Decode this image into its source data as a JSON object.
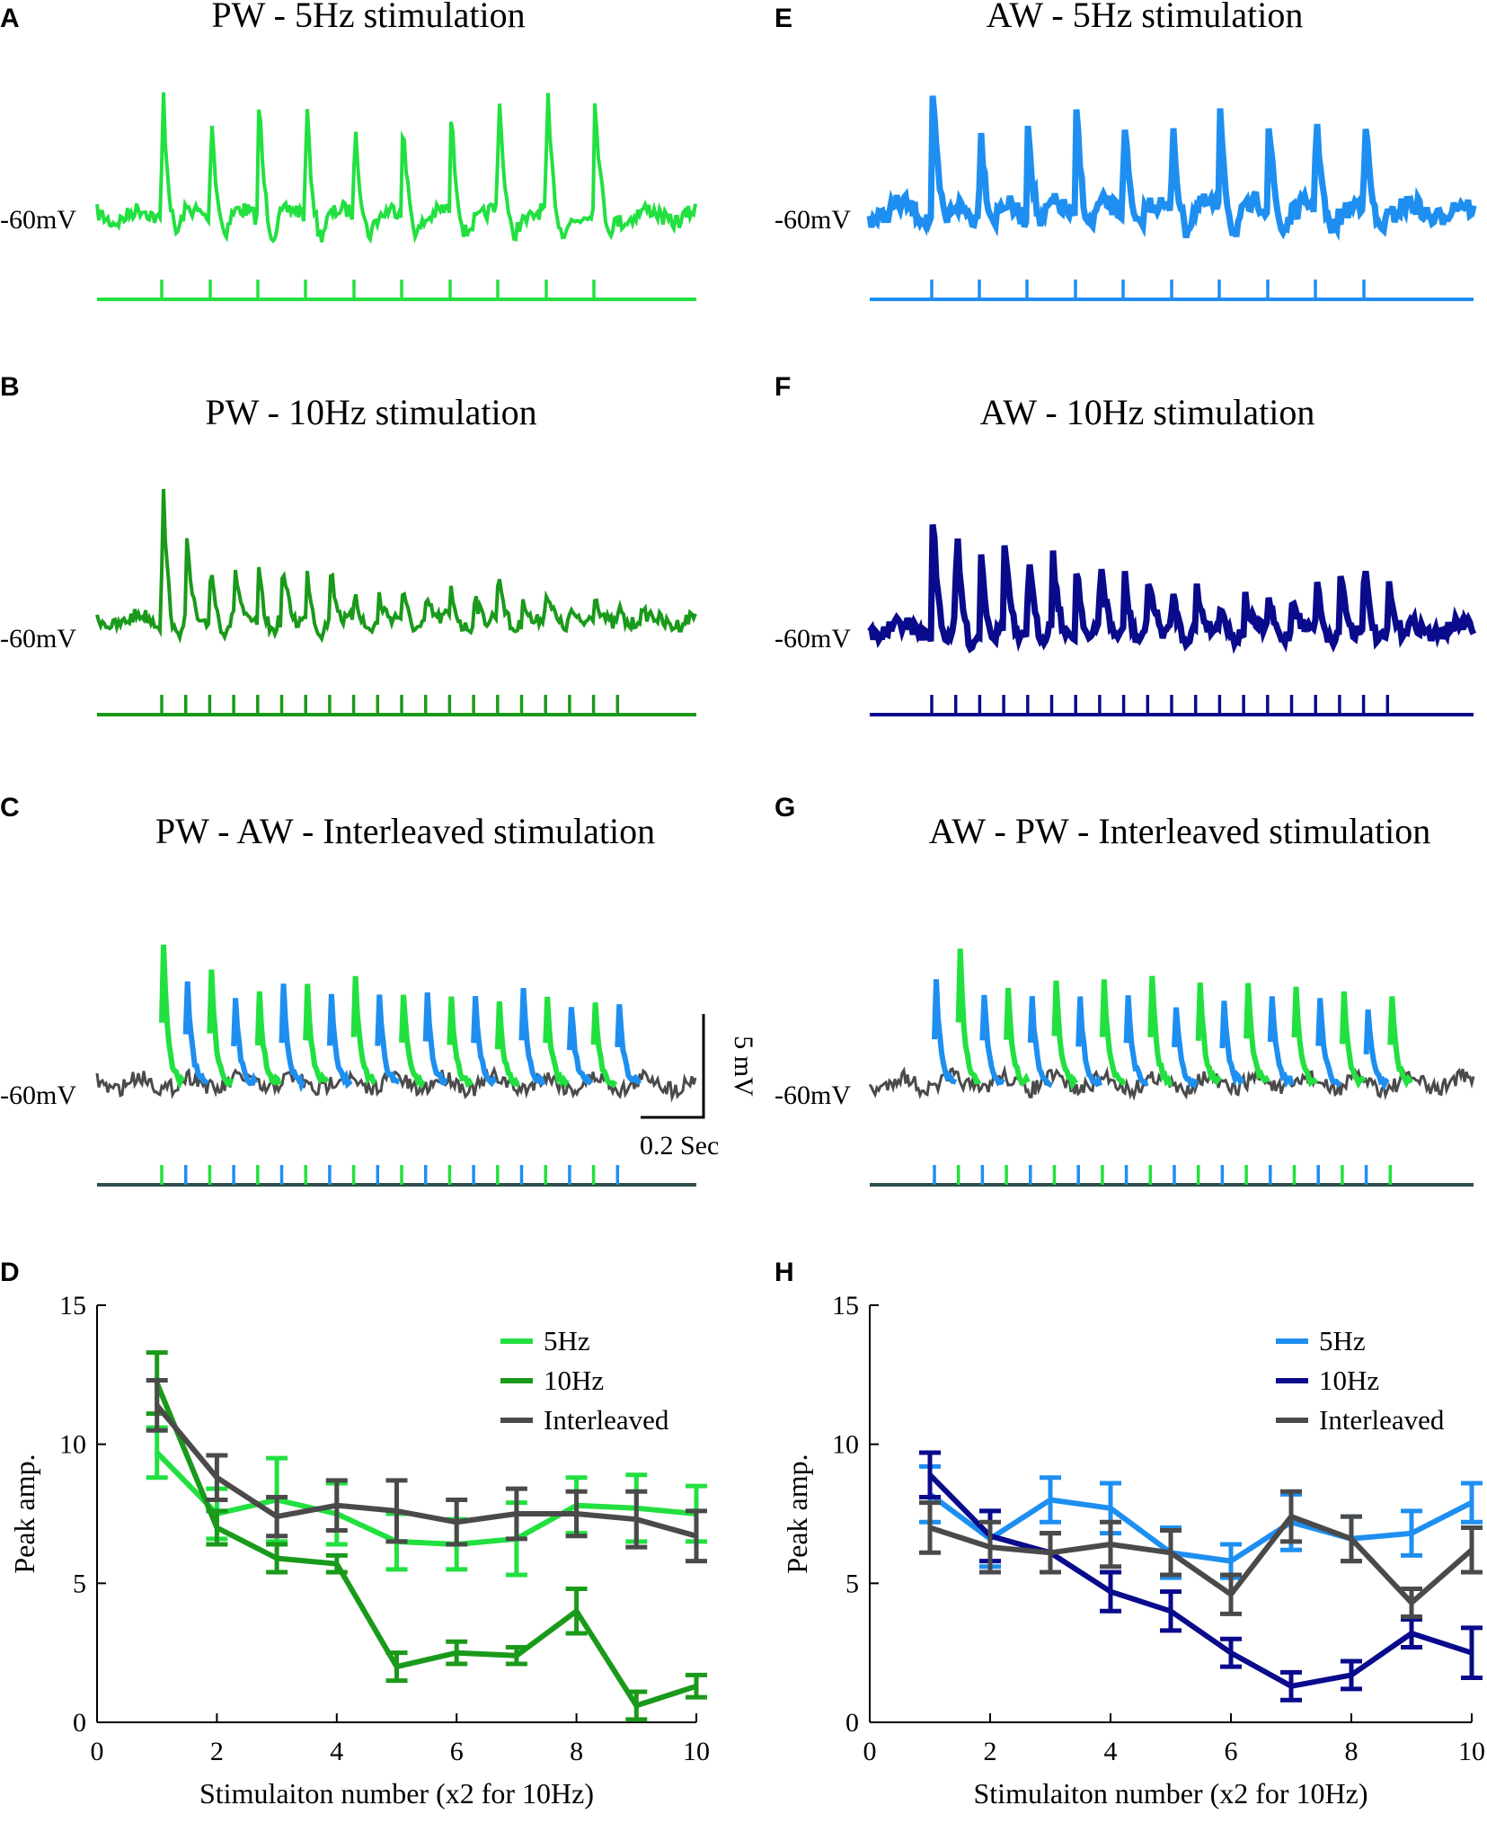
{
  "colors": {
    "pw5": "#22e040",
    "pw10": "#1a9a1a",
    "aw5": "#1e8ff0",
    "aw10": "#0a0a8c",
    "inter": "#4a4a4a",
    "stimline": "#2f4f4f"
  },
  "mv_label": "-60mV",
  "scale_bar": {
    "vertical": "5 mV",
    "horizontal": "0.2 Sec"
  },
  "panels": {
    "A": {
      "letter": "A",
      "title": "PW - 5Hz stimulation"
    },
    "B": {
      "letter": "B",
      "title": "PW - 10Hz stimulation"
    },
    "C": {
      "letter": "C",
      "title": "PW - AW - Interleaved stimulation"
    },
    "D": {
      "letter": "D"
    },
    "E": {
      "letter": "E",
      "title": "AW - 5Hz stimulation"
    },
    "F": {
      "letter": "F",
      "title": "AW - 10Hz stimulation"
    },
    "G": {
      "letter": "G",
      "title": "AW - PW - Interleaved stimulation"
    },
    "H": {
      "letter": "H"
    }
  },
  "chart_data": [
    {
      "panel": "D",
      "type": "line",
      "xlabel": "Stimulaiton number (x2 for 10Hz)",
      "ylabel": "Peak amp.",
      "xlim": [
        0,
        10
      ],
      "ylim": [
        0,
        15
      ],
      "xticks": [
        0,
        2,
        4,
        6,
        8,
        10
      ],
      "yticks": [
        0,
        5,
        10,
        15
      ],
      "legend_position": "top-right",
      "x": [
        1,
        2,
        3,
        4,
        5,
        6,
        7,
        8,
        9,
        10
      ],
      "series": [
        {
          "name": "5Hz",
          "color_key": "pw5",
          "values": [
            9.7,
            7.5,
            8.0,
            7.5,
            6.5,
            6.4,
            6.6,
            7.8,
            7.7,
            7.5
          ],
          "errors": [
            0.9,
            0.9,
            1.5,
            1.1,
            1.0,
            0.9,
            1.3,
            1.0,
            1.2,
            1.0
          ]
        },
        {
          "name": "10Hz",
          "color_key": "pw10",
          "values": [
            12.2,
            7.0,
            5.9,
            5.7,
            2.0,
            2.5,
            2.4,
            4.0,
            0.6,
            1.3
          ],
          "errors": [
            1.1,
            0.6,
            0.5,
            0.3,
            0.5,
            0.4,
            0.3,
            0.8,
            0.5,
            0.4
          ]
        },
        {
          "name": "Interleaved",
          "color_key": "inter",
          "values": [
            11.4,
            8.8,
            7.4,
            7.8,
            7.6,
            7.2,
            7.5,
            7.5,
            7.3,
            6.7
          ],
          "errors": [
            0.9,
            0.8,
            0.7,
            0.9,
            1.1,
            0.8,
            0.9,
            0.8,
            1.0,
            0.9
          ]
        }
      ]
    },
    {
      "panel": "H",
      "type": "line",
      "xlabel": "Stimulaiton number (x2 for 10Hz)",
      "ylabel": "Peak amp.",
      "xlim": [
        0,
        10
      ],
      "ylim": [
        0,
        15
      ],
      "xticks": [
        0,
        2,
        4,
        6,
        8,
        10
      ],
      "yticks": [
        0,
        5,
        10,
        15
      ],
      "legend_position": "top-right",
      "x": [
        1,
        2,
        3,
        4,
        5,
        6,
        7,
        8,
        9,
        10
      ],
      "series": [
        {
          "name": "5Hz",
          "color_key": "aw5",
          "values": [
            8.2,
            6.6,
            8.0,
            7.7,
            6.1,
            5.8,
            7.2,
            6.6,
            6.8,
            7.9
          ],
          "errors": [
            1.0,
            1.0,
            0.8,
            0.9,
            0.9,
            0.6,
            1.0,
            0.8,
            0.8,
            0.7
          ]
        },
        {
          "name": "10Hz",
          "color_key": "aw10",
          "values": [
            8.9,
            6.7,
            6.1,
            4.7,
            4.0,
            2.5,
            1.3,
            1.7,
            3.2,
            2.5
          ],
          "errors": [
            0.8,
            0.9,
            0.7,
            0.7,
            0.7,
            0.5,
            0.5,
            0.5,
            0.5,
            0.9
          ]
        },
        {
          "name": "Interleaved",
          "color_key": "inter",
          "values": [
            7.0,
            6.3,
            6.1,
            6.4,
            6.1,
            4.6,
            7.4,
            6.6,
            4.3,
            6.2
          ],
          "errors": [
            0.9,
            0.9,
            0.7,
            0.8,
            0.8,
            0.7,
            0.9,
            0.8,
            0.5,
            0.8
          ]
        }
      ]
    }
  ]
}
